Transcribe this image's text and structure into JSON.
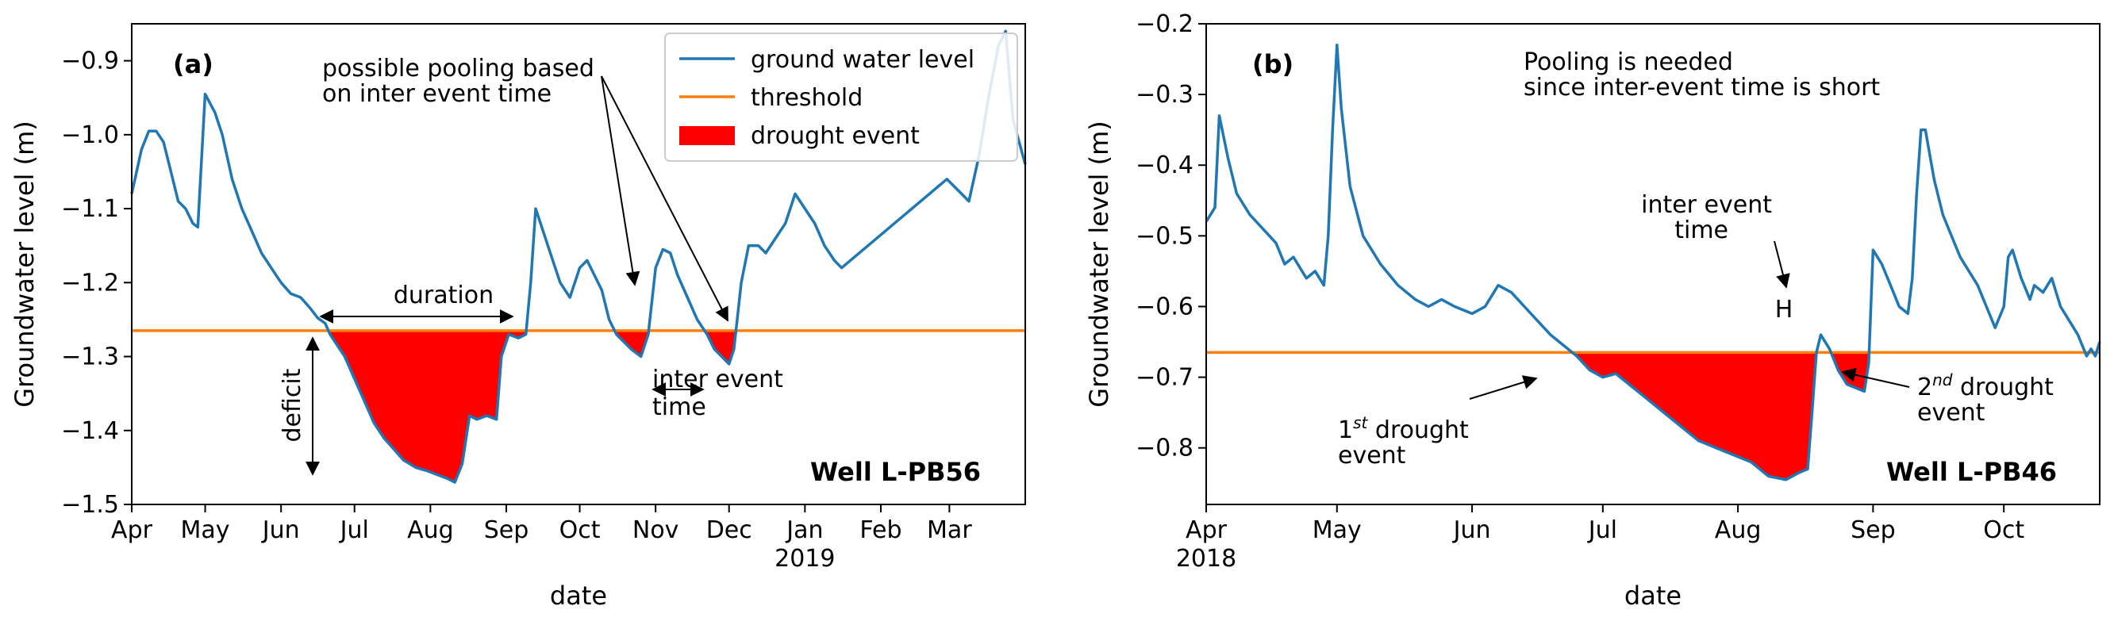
{
  "chart_data": [
    {
      "type": "line",
      "panel_label": "(a)",
      "xlabel": "date",
      "ylabel": "Groundwater level (m)",
      "ylim": [
        -1.5,
        -0.85
      ],
      "yticks": [
        -1.5,
        -1.4,
        -1.3,
        -1.2,
        -1.1,
        -1.0,
        -0.9
      ],
      "xlim": [
        "2018-04-01",
        "2019-04-01"
      ],
      "xticks": [
        {
          "date": "2018-04-01",
          "label": "Apr"
        },
        {
          "date": "2018-05-01",
          "label": "May"
        },
        {
          "date": "2018-06-01",
          "label": "Jun"
        },
        {
          "date": "2018-07-01",
          "label": "Jul"
        },
        {
          "date": "2018-08-01",
          "label": "Aug"
        },
        {
          "date": "2018-09-01",
          "label": "Sep"
        },
        {
          "date": "2018-10-01",
          "label": "Oct"
        },
        {
          "date": "2018-11-01",
          "label": "Nov"
        },
        {
          "date": "2018-12-01",
          "label": "Dec"
        },
        {
          "date": "2019-01-01",
          "label": "Jan",
          "label2": "2019"
        },
        {
          "date": "2019-02-01",
          "label": "Feb"
        },
        {
          "date": "2019-03-01",
          "label": "Mar"
        }
      ],
      "threshold": -1.265,
      "legend": {
        "placement": "top-right",
        "entries": [
          "ground water level",
          "threshold",
          "drought event"
        ]
      },
      "series": [
        {
          "name": "ground water level",
          "color": "#1f77b4",
          "points": [
            [
              "2018-04-01",
              -1.08
            ],
            [
              "2018-04-05",
              -1.02
            ],
            [
              "2018-04-08",
              -0.995
            ],
            [
              "2018-04-11",
              -0.995
            ],
            [
              "2018-04-14",
              -1.01
            ],
            [
              "2018-04-17",
              -1.05
            ],
            [
              "2018-04-20",
              -1.09
            ],
            [
              "2018-04-23",
              -1.1
            ],
            [
              "2018-04-26",
              -1.12
            ],
            [
              "2018-04-28",
              -1.125
            ],
            [
              "2018-05-01",
              -0.945
            ],
            [
              "2018-05-05",
              -0.97
            ],
            [
              "2018-05-08",
              -1.0
            ],
            [
              "2018-05-12",
              -1.06
            ],
            [
              "2018-05-16",
              -1.1
            ],
            [
              "2018-05-20",
              -1.13
            ],
            [
              "2018-05-24",
              -1.16
            ],
            [
              "2018-05-28",
              -1.18
            ],
            [
              "2018-06-01",
              -1.2
            ],
            [
              "2018-06-05",
              -1.215
            ],
            [
              "2018-06-09",
              -1.22
            ],
            [
              "2018-06-13",
              -1.235
            ],
            [
              "2018-06-16",
              -1.248
            ],
            [
              "2018-06-19",
              -1.255
            ],
            [
              "2018-06-21",
              -1.27
            ],
            [
              "2018-06-24",
              -1.285
            ],
            [
              "2018-06-27",
              -1.3
            ],
            [
              "2018-07-01",
              -1.33
            ],
            [
              "2018-07-05",
              -1.36
            ],
            [
              "2018-07-09",
              -1.39
            ],
            [
              "2018-07-13",
              -1.41
            ],
            [
              "2018-07-17",
              -1.425
            ],
            [
              "2018-07-21",
              -1.44
            ],
            [
              "2018-07-26",
              -1.45
            ],
            [
              "2018-07-31",
              -1.455
            ],
            [
              "2018-08-04",
              -1.46
            ],
            [
              "2018-08-08",
              -1.465
            ],
            [
              "2018-08-11",
              -1.47
            ],
            [
              "2018-08-14",
              -1.445
            ],
            [
              "2018-08-17",
              -1.38
            ],
            [
              "2018-08-20",
              -1.385
            ],
            [
              "2018-08-24",
              -1.38
            ],
            [
              "2018-08-28",
              -1.385
            ],
            [
              "2018-08-30",
              -1.3
            ],
            [
              "2018-09-02",
              -1.27
            ],
            [
              "2018-09-06",
              -1.275
            ],
            [
              "2018-09-09",
              -1.27
            ],
            [
              "2018-09-11",
              -1.2
            ],
            [
              "2018-09-13",
              -1.1
            ],
            [
              "2018-09-15",
              -1.12
            ],
            [
              "2018-09-19",
              -1.16
            ],
            [
              "2018-09-23",
              -1.2
            ],
            [
              "2018-09-27",
              -1.22
            ],
            [
              "2018-10-01",
              -1.18
            ],
            [
              "2018-10-04",
              -1.17
            ],
            [
              "2018-10-07",
              -1.19
            ],
            [
              "2018-10-10",
              -1.21
            ],
            [
              "2018-10-13",
              -1.25
            ],
            [
              "2018-10-16",
              -1.27
            ],
            [
              "2018-10-19",
              -1.28
            ],
            [
              "2018-10-22",
              -1.29
            ],
            [
              "2018-10-26",
              -1.3
            ],
            [
              "2018-10-29",
              -1.27
            ],
            [
              "2018-11-01",
              -1.18
            ],
            [
              "2018-11-04",
              -1.155
            ],
            [
              "2018-11-07",
              -1.16
            ],
            [
              "2018-11-10",
              -1.19
            ],
            [
              "2018-11-14",
              -1.22
            ],
            [
              "2018-11-18",
              -1.25
            ],
            [
              "2018-11-22",
              -1.27
            ],
            [
              "2018-11-25",
              -1.29
            ],
            [
              "2018-11-28",
              -1.3
            ],
            [
              "2018-12-01",
              -1.31
            ],
            [
              "2018-12-03",
              -1.29
            ],
            [
              "2018-12-06",
              -1.2
            ],
            [
              "2018-12-09",
              -1.15
            ],
            [
              "2018-12-13",
              -1.15
            ],
            [
              "2018-12-16",
              -1.16
            ],
            [
              "2018-12-20",
              -1.14
            ],
            [
              "2018-12-24",
              -1.12
            ],
            [
              "2018-12-28",
              -1.08
            ],
            [
              "2019-01-01",
              -1.1
            ],
            [
              "2019-01-05",
              -1.12
            ],
            [
              "2019-01-09",
              -1.15
            ],
            [
              "2019-01-13",
              -1.17
            ],
            [
              "2019-01-16",
              -1.18
            ],
            [
              "2019-02-28",
              -1.06
            ],
            [
              "2019-03-03",
              -1.07
            ],
            [
              "2019-03-06",
              -1.08
            ],
            [
              "2019-03-09",
              -1.09
            ],
            [
              "2019-03-13",
              -1.03
            ],
            [
              "2019-03-17",
              -0.95
            ],
            [
              "2019-03-21",
              -0.88
            ],
            [
              "2019-03-24",
              -0.86
            ],
            [
              "2019-03-27",
              -0.98
            ],
            [
              "2019-04-01",
              -1.04
            ]
          ]
        },
        {
          "name": "threshold",
          "color": "#ff7f0e",
          "value": -1.265
        }
      ],
      "drought_color": "#ff0000",
      "annotations": {
        "pooling": "possible pooling based",
        "pooling2": "on inter event time",
        "duration": "duration",
        "deficit": "deficit",
        "inter1": "inter event",
        "inter2": "time",
        "well": "Well L-PB56"
      }
    },
    {
      "type": "line",
      "panel_label": "(b)",
      "xlabel": "date",
      "ylabel": "Groundwater level (m)",
      "ylim": [
        -0.88,
        -0.2
      ],
      "yticks": [
        -0.8,
        -0.7,
        -0.6,
        -0.5,
        -0.4,
        -0.3,
        -0.2
      ],
      "xlim": [
        "2018-04-01",
        "2018-10-23"
      ],
      "xticks": [
        {
          "date": "2018-04-01",
          "label": "Apr",
          "label2": "2018"
        },
        {
          "date": "2018-05-01",
          "label": "May"
        },
        {
          "date": "2018-06-01",
          "label": "Jun"
        },
        {
          "date": "2018-07-01",
          "label": "Jul"
        },
        {
          "date": "2018-08-01",
          "label": "Aug"
        },
        {
          "date": "2018-09-01",
          "label": "Sep"
        },
        {
          "date": "2018-10-01",
          "label": "Oct"
        }
      ],
      "threshold": -0.665,
      "series": [
        {
          "name": "ground water level",
          "color": "#1f77b4",
          "points": [
            [
              "2018-04-01",
              -0.48
            ],
            [
              "2018-04-02",
              -0.47
            ],
            [
              "2018-04-03",
              -0.46
            ],
            [
              "2018-04-04",
              -0.33
            ],
            [
              "2018-04-06",
              -0.39
            ],
            [
              "2018-04-08",
              -0.44
            ],
            [
              "2018-04-11",
              -0.47
            ],
            [
              "2018-04-14",
              -0.49
            ],
            [
              "2018-04-17",
              -0.51
            ],
            [
              "2018-04-19",
              -0.54
            ],
            [
              "2018-04-21",
              -0.53
            ],
            [
              "2018-04-24",
              -0.56
            ],
            [
              "2018-04-26",
              -0.55
            ],
            [
              "2018-04-28",
              -0.57
            ],
            [
              "2018-04-29",
              -0.5
            ],
            [
              "2018-04-30",
              -0.35
            ],
            [
              "2018-05-01",
              -0.23
            ],
            [
              "2018-05-02",
              -0.32
            ],
            [
              "2018-05-04",
              -0.43
            ],
            [
              "2018-05-07",
              -0.5
            ],
            [
              "2018-05-11",
              -0.54
            ],
            [
              "2018-05-15",
              -0.57
            ],
            [
              "2018-05-19",
              -0.59
            ],
            [
              "2018-05-22",
              -0.6
            ],
            [
              "2018-05-25",
              -0.59
            ],
            [
              "2018-05-28",
              -0.6
            ],
            [
              "2018-06-01",
              -0.61
            ],
            [
              "2018-06-04",
              -0.6
            ],
            [
              "2018-06-07",
              -0.57
            ],
            [
              "2018-06-10",
              -0.58
            ],
            [
              "2018-06-13",
              -0.6
            ],
            [
              "2018-06-16",
              -0.62
            ],
            [
              "2018-06-19",
              -0.64
            ],
            [
              "2018-06-22",
              -0.655
            ],
            [
              "2018-06-25",
              -0.67
            ],
            [
              "2018-06-28",
              -0.69
            ],
            [
              "2018-07-01",
              -0.7
            ],
            [
              "2018-07-04",
              -0.695
            ],
            [
              "2018-07-07",
              -0.71
            ],
            [
              "2018-07-11",
              -0.73
            ],
            [
              "2018-07-15",
              -0.75
            ],
            [
              "2018-07-19",
              -0.77
            ],
            [
              "2018-07-23",
              -0.79
            ],
            [
              "2018-07-27",
              -0.8
            ],
            [
              "2018-07-31",
              -0.81
            ],
            [
              "2018-08-04",
              -0.82
            ],
            [
              "2018-08-08",
              -0.84
            ],
            [
              "2018-08-12",
              -0.845
            ],
            [
              "2018-08-15",
              -0.835
            ],
            [
              "2018-08-17",
              -0.83
            ],
            [
              "2018-08-18",
              -0.75
            ],
            [
              "2018-08-19",
              -0.665
            ],
            [
              "2018-08-20",
              -0.64
            ],
            [
              "2018-08-22",
              -0.66
            ],
            [
              "2018-08-24",
              -0.69
            ],
            [
              "2018-08-26",
              -0.71
            ],
            [
              "2018-08-28",
              -0.715
            ],
            [
              "2018-08-30",
              -0.72
            ],
            [
              "2018-08-31",
              -0.68
            ],
            [
              "2018-09-01",
              -0.52
            ],
            [
              "2018-09-03",
              -0.54
            ],
            [
              "2018-09-05",
              -0.57
            ],
            [
              "2018-09-07",
              -0.6
            ],
            [
              "2018-09-09",
              -0.61
            ],
            [
              "2018-09-10",
              -0.56
            ],
            [
              "2018-09-11",
              -0.44
            ],
            [
              "2018-09-12",
              -0.35
            ],
            [
              "2018-09-13",
              -0.35
            ],
            [
              "2018-09-15",
              -0.42
            ],
            [
              "2018-09-17",
              -0.47
            ],
            [
              "2018-09-19",
              -0.5
            ],
            [
              "2018-09-21",
              -0.53
            ],
            [
              "2018-09-23",
              -0.55
            ],
            [
              "2018-09-25",
              -0.57
            ],
            [
              "2018-09-27",
              -0.6
            ],
            [
              "2018-09-29",
              -0.63
            ],
            [
              "2018-10-01",
              -0.6
            ],
            [
              "2018-10-02",
              -0.53
            ],
            [
              "2018-10-03",
              -0.52
            ],
            [
              "2018-10-05",
              -0.56
            ],
            [
              "2018-10-07",
              -0.59
            ],
            [
              "2018-10-08",
              -0.57
            ],
            [
              "2018-10-10",
              -0.58
            ],
            [
              "2018-10-12",
              -0.56
            ],
            [
              "2018-10-14",
              -0.6
            ],
            [
              "2018-10-16",
              -0.62
            ],
            [
              "2018-10-18",
              -0.64
            ],
            [
              "2018-10-20",
              -0.67
            ],
            [
              "2018-10-21",
              -0.66
            ],
            [
              "2018-10-22",
              -0.67
            ],
            [
              "2018-10-23",
              -0.65
            ]
          ]
        },
        {
          "name": "threshold",
          "color": "#ff7f0e",
          "value": -0.665
        }
      ],
      "drought_color": "#ff0000",
      "annotations": {
        "pooling": "Pooling is needed",
        "pooling2": "since inter-event time is short",
        "inter1": "inter event",
        "inter2": "time",
        "h": "H",
        "first1": "1",
        "first_sup": "st",
        "first2": " drought",
        "first3": "event",
        "second1": "2",
        "second_sup": "nd",
        "second2": " drought",
        "second3": "event",
        "well": "Well L-PB46"
      }
    }
  ]
}
